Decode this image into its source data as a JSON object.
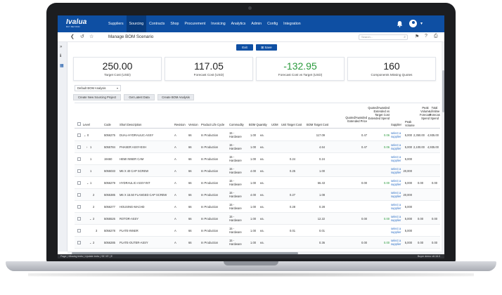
{
  "brand": {
    "logo": "Ivalua",
    "logo_sub": "BUY BEYOND"
  },
  "nav": {
    "items": [
      "Suppliers",
      "Sourcing",
      "Contracts",
      "Shop",
      "Procurement",
      "Invoicing",
      "Analytics",
      "Admin",
      "Config",
      "Integration"
    ],
    "active": "Sourcing"
  },
  "header": {
    "title": "Manage BOM Scenario",
    "search_placeholder": "Search..."
  },
  "actions": {
    "exit": "Exit",
    "save": "Save"
  },
  "kpis": [
    {
      "value": "250.00",
      "label": "Target Cost (USD)"
    },
    {
      "value": "117.05",
      "label": "Forecast Cost (USD)"
    },
    {
      "value": "-132.95",
      "label": "Forecast Cost vs Target (USD)"
    },
    {
      "value": "160",
      "label": "Components Missing Quotes"
    }
  ],
  "analysis_select": {
    "value": "Default BOM Analysis"
  },
  "toolbar": {
    "new_project": "Create New Sourcing Project",
    "latest_data": "Get Latest Data",
    "create_analysis": "Create BOM Analysis"
  },
  "columns": {
    "level": "Level",
    "code": "Code",
    "description": "Short Description",
    "revision": "Revision",
    "version": "Version",
    "lifecycle": "Product Life Cycle",
    "commodity": "Commodity",
    "qty": "BOM Quantity",
    "uom": "UOM",
    "unit_target": "Unit Target Cost",
    "bom_target": "BOM Target Cost",
    "quoted": [
      "Quoted/Awarded",
      "Extended Price"
    ],
    "quoted_vs": [
      "Quoted/Awarded",
      "Extended vs",
      "Target Cost",
      "Extended Spend"
    ],
    "supplier": "Supplier",
    "peak_volume": [
      "Peak",
      "Volume"
    ],
    "forecast_spend": [
      "Peak",
      "Volume",
      "Forecast",
      "Spend"
    ],
    "total": [
      "Total",
      "Lifetime",
      "Forecast",
      "Spend"
    ]
  },
  "rows": [
    {
      "level": "0",
      "expand": "⌄",
      "code": "5056275",
      "desc": "DUAL-HYDRAULIC-ASSY",
      "rev": "A",
      "ver": "66",
      "plc": "In Production",
      "com1": "15 -",
      "com2": "Hardware",
      "qty": "1.00",
      "uom": "ea.",
      "unit_target": "",
      "bom_target": "117.09",
      "quoted": "0.47",
      "vs": "0.06",
      "sup1": "select a",
      "sup2": "supplier",
      "peak": "5,000",
      "fspend": "2,350.00",
      "total": "4,935.00"
    },
    {
      "level": "1",
      "expand": "›",
      "code": "5055784",
      "desc": "PHASER ASSY-EXH",
      "rev": "A",
      "ver": "66",
      "plc": "In Production",
      "com1": "15 -",
      "com2": "Hardware",
      "qty": "1.00",
      "uom": "ea.",
      "unit_target": "",
      "bom_target": "4.64",
      "quoted": "0.47",
      "vs": "0.06",
      "sup1": "select a",
      "sup2": "supplier",
      "peak": "5,000",
      "fspend": "2,100.00",
      "total": "4,935.00"
    },
    {
      "level": "1",
      "expand": "",
      "code": "19460",
      "desc": "HEMI INNER CAM",
      "rev": "A",
      "ver": "66",
      "plc": "In Production",
      "com1": "15 -",
      "com2": "Hardware",
      "qty": "1.00",
      "uom": "ea.",
      "unit_target": "0.24",
      "bom_target": "0.24",
      "quoted": "",
      "vs": "",
      "sup1": "select a",
      "sup2": "supplier",
      "peak": "5,000",
      "fspend": "",
      "total": ""
    },
    {
      "level": "1",
      "expand": "",
      "code": "5055033",
      "desc": "M6 X 40 CAP SCREW",
      "rev": "A",
      "ver": "66",
      "plc": "In Production",
      "com1": "15 -",
      "com2": "Hardware",
      "qty": "4.00",
      "uom": "ea.",
      "unit_target": "0.25",
      "bom_target": "1.00",
      "quoted": "",
      "vs": "",
      "sup1": "select a",
      "sup2": "supplier",
      "peak": "20,000",
      "fspend": "",
      "total": ""
    },
    {
      "level": "1",
      "expand": "⌄",
      "code": "5056279",
      "desc": "HYDRAULIC-ASSY-INT",
      "rev": "A",
      "ver": "66",
      "plc": "In Production",
      "com1": "15 -",
      "com2": "Hardware",
      "qty": "1.00",
      "uom": "ea.",
      "unit_target": "",
      "bom_target": "66.43",
      "quoted": "0.00",
      "vs": "0.00",
      "sup1": "select a",
      "sup2": "supplier",
      "peak": "5,000",
      "fspend": "0.00",
      "total": "0.00"
    },
    {
      "level": "2",
      "expand": "",
      "code": "5055385",
      "desc": "M6 X 15.50 FLANGED CAP SCREW",
      "rev": "A",
      "ver": "66",
      "plc": "In Production",
      "com1": "15 -",
      "com2": "Hardware",
      "qty": "4.00",
      "uom": "ea.",
      "unit_target": "0.27",
      "bom_target": "1.08",
      "quoted": "",
      "vs": "",
      "sup1": "select a",
      "sup2": "supplier",
      "peak": "20,000",
      "fspend": "",
      "total": ""
    },
    {
      "level": "2",
      "expand": "",
      "code": "5056277",
      "desc": "HOUSING-MACHD",
      "rev": "A",
      "ver": "66",
      "plc": "In Production",
      "com1": "15 -",
      "com2": "Hardware",
      "qty": "1.00",
      "uom": "ea.",
      "unit_target": "0.28",
      "bom_target": "0.28",
      "quoted": "",
      "vs": "",
      "sup1": "select a",
      "sup2": "supplier",
      "peak": "5,000",
      "fspend": "",
      "total": ""
    },
    {
      "level": "2",
      "expand": "⌄",
      "code": "5055526",
      "desc": "ROTOR-ASSY",
      "rev": "A",
      "ver": "66",
      "plc": "In Production",
      "com1": "15 -",
      "com2": "Hardware",
      "qty": "1.00",
      "uom": "ea.",
      "unit_target": "",
      "bom_target": "12.22",
      "quoted": "0.00",
      "vs": "0.00",
      "sup1": "select a",
      "sup2": "supplier",
      "peak": "5,000",
      "fspend": "0.00",
      "total": "0.00"
    },
    {
      "level": "3",
      "expand": "",
      "code": "5056278",
      "desc": "PLATE-INNER",
      "rev": "A",
      "ver": "66",
      "plc": "In Production",
      "com1": "15 -",
      "com2": "Hardware",
      "qty": "1.00",
      "uom": "ea.",
      "unit_target": "0.01",
      "bom_target": "0.01",
      "quoted": "",
      "vs": "",
      "sup1": "select a",
      "sup2": "supplier",
      "peak": "5,000",
      "fspend": "",
      "total": ""
    },
    {
      "level": "2",
      "expand": "⌄",
      "code": "5056285",
      "desc": "PLATE-OUTER-ASSY",
      "rev": "A",
      "ver": "66",
      "plc": "In Production",
      "com1": "15 -",
      "com2": "Hardware",
      "qty": "1.00",
      "uom": "ea.",
      "unit_target": "",
      "bom_target": "0.36",
      "quoted": "0.00",
      "vs": "0.00",
      "sup1": "select a",
      "sup2": "supplier",
      "peak": "5,000",
      "fspend": "0.00",
      "total": "0.00"
    }
  ],
  "status": {
    "left": "Page | Missing texts | Update texts | SE VE | E",
    "right": "Buyer demo v8.16.0"
  },
  "colors": {
    "nav": "#0e4fa3",
    "accent_green": "#2a9a3c",
    "link": "#2d6fc5"
  }
}
